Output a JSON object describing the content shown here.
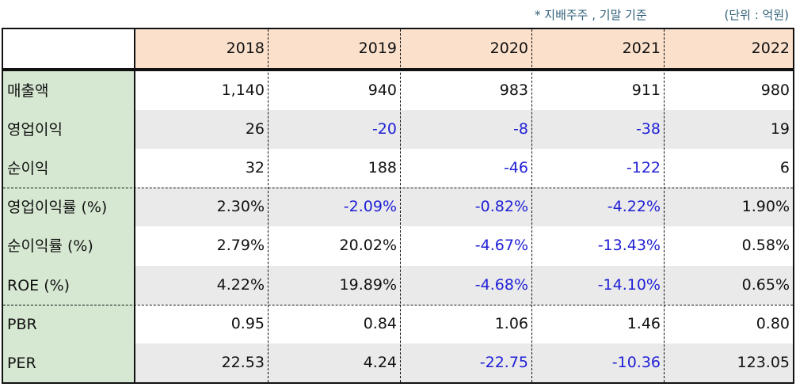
{
  "notes": {
    "basis": "* 지배주주 , 기말 기준",
    "unit": "(단위 : 억원)"
  },
  "table": {
    "years": [
      "2018",
      "2019",
      "2020",
      "2021",
      "2022"
    ],
    "rows": [
      {
        "label": "매출액",
        "values": [
          "1,140",
          "940",
          "983",
          "911",
          "980"
        ]
      },
      {
        "label": "영업이익",
        "values": [
          "26",
          "-20",
          "-8",
          "-38",
          "19"
        ]
      },
      {
        "label": "순이익",
        "values": [
          "32",
          "188",
          "-46",
          "-122",
          "6"
        ]
      },
      {
        "label": "영업이익률 (%)",
        "values": [
          "2.30%",
          "-2.09%",
          "-0.82%",
          "-4.22%",
          "1.90%"
        ]
      },
      {
        "label": "순이익률 (%)",
        "values": [
          "2.79%",
          "20.02%",
          "-4.67%",
          "-13.43%",
          "0.58%"
        ]
      },
      {
        "label": "ROE (%)",
        "values": [
          "4.22%",
          "19.89%",
          "-4.68%",
          "-14.10%",
          "0.65%"
        ]
      },
      {
        "label": "PBR",
        "values": [
          "0.95",
          "0.84",
          "1.06",
          "1.46",
          "0.80"
        ]
      },
      {
        "label": "PER",
        "values": [
          "22.53",
          "4.24",
          "-22.75",
          "-10.36",
          "123.05"
        ]
      }
    ]
  },
  "colors": {
    "header_bg": "#fbe1cc",
    "label_bg": "#d6e8d2",
    "shade_bg": "#eaeaeb",
    "negative_text": "#1f1fd6",
    "note_text": "#2e5f78"
  }
}
